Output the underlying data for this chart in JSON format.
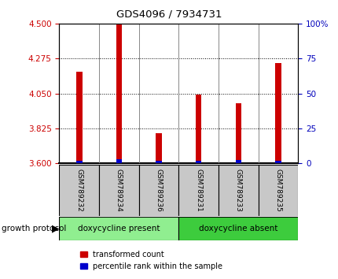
{
  "title": "GDS4096 / 7934731",
  "samples": [
    "GSM789232",
    "GSM789234",
    "GSM789236",
    "GSM789231",
    "GSM789233",
    "GSM789235"
  ],
  "red_values": [
    4.19,
    4.495,
    3.795,
    4.045,
    3.985,
    4.245
  ],
  "blue_values": [
    3.615,
    3.625,
    3.615,
    3.618,
    3.62,
    3.615
  ],
  "y_min": 3.6,
  "y_max": 4.5,
  "y_ticks": [
    3.6,
    3.825,
    4.05,
    4.275,
    4.5
  ],
  "right_y_ticks": [
    0,
    25,
    50,
    75,
    100
  ],
  "groups": [
    {
      "label": "doxycycline present",
      "indices": [
        0,
        1,
        2
      ],
      "color": "#90EE90"
    },
    {
      "label": "doxycycline absent",
      "indices": [
        3,
        4,
        5
      ],
      "color": "#3DCC3D"
    }
  ],
  "group_protocol_label": "growth protocol",
  "legend_red": "transformed count",
  "legend_blue": "percentile rank within the sample",
  "bar_width": 0.15,
  "red_color": "#CC0000",
  "blue_color": "#0000CC",
  "tick_color_left": "#CC0000",
  "tick_color_right": "#0000BB",
  "label_box_color": "#C8C8C8",
  "figsize": [
    4.31,
    3.54
  ],
  "dpi": 100
}
